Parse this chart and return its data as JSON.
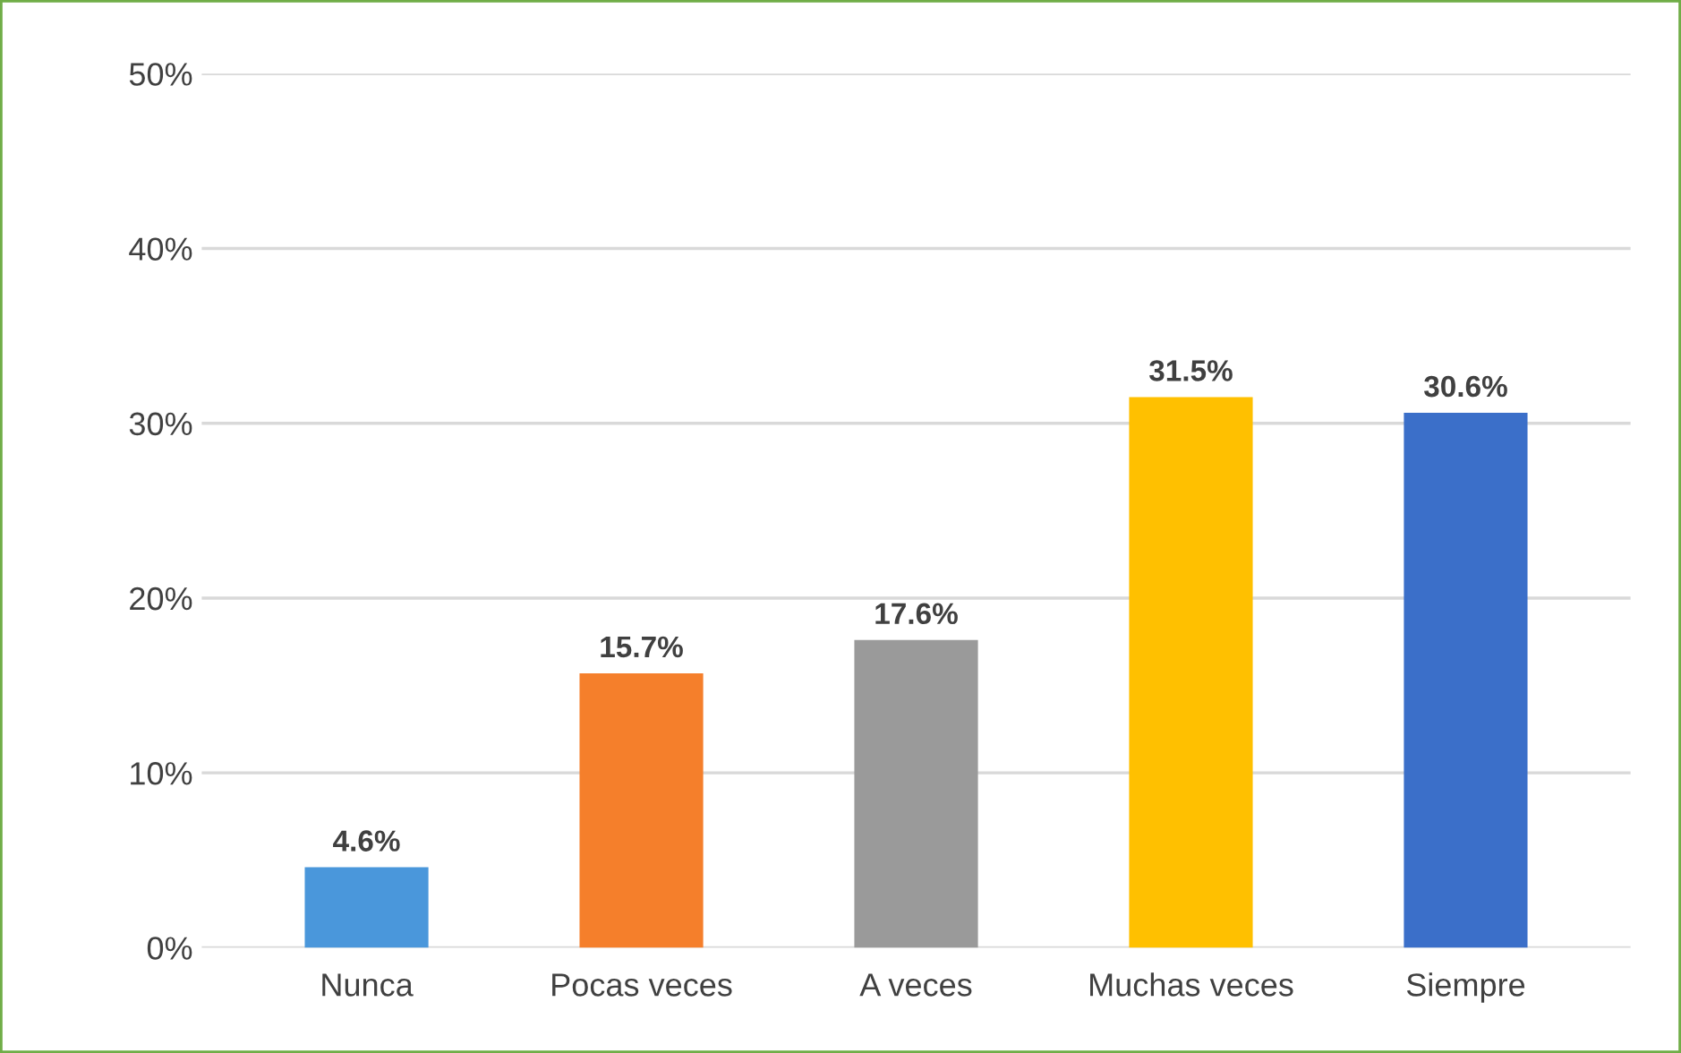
{
  "chart_data": {
    "type": "bar",
    "categories": [
      "Nunca",
      "Pocas veces",
      "A veces",
      "Muchas veces",
      "Siempre"
    ],
    "values": [
      4.6,
      15.7,
      17.6,
      31.5,
      30.6
    ],
    "colors": [
      "#4a97db",
      "#f57f2b",
      "#9a9a9a",
      "#ffc000",
      "#3b6fc9"
    ],
    "value_labels": [
      "4.6%",
      "15.7%",
      "17.6%",
      "31.5%",
      "30.6%"
    ],
    "ylim": [
      0,
      50
    ],
    "yticks": [
      {
        "value": 0,
        "label": "0%"
      },
      {
        "value": 10,
        "label": "10%"
      },
      {
        "value": 20,
        "label": "20%"
      },
      {
        "value": 30,
        "label": "30%"
      },
      {
        "value": 40,
        "label": "40%"
      },
      {
        "value": 50,
        "label": "50%"
      }
    ],
    "grid": "y"
  }
}
